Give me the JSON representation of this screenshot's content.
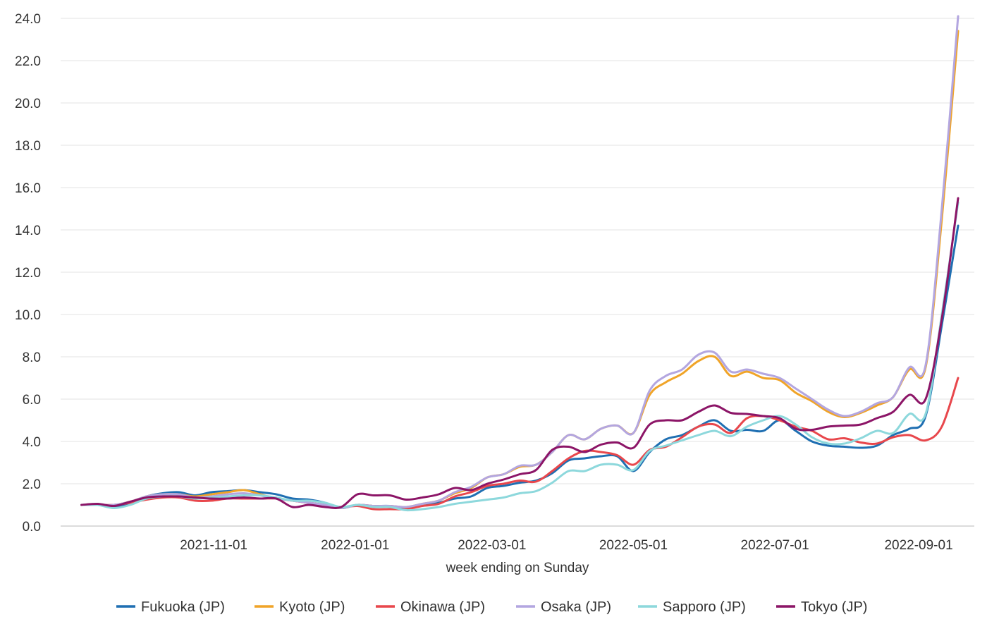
{
  "chart_data": {
    "type": "line",
    "title": "",
    "xlabel": "week ending on Sunday",
    "ylabel": "",
    "ylim": [
      0,
      24
    ],
    "yticks": [
      "0.0",
      "2.0",
      "4.0",
      "6.0",
      "8.0",
      "10.0",
      "12.0",
      "14.0",
      "16.0",
      "18.0",
      "20.0",
      "22.0",
      "24.0"
    ],
    "xticks": [
      "2021-11-01",
      "2022-01-01",
      "2022-03-01",
      "2022-05-01",
      "2022-07-01",
      "2022-09-01"
    ],
    "x": [
      "2021-09-05",
      "2021-09-12",
      "2021-09-19",
      "2021-09-26",
      "2021-10-03",
      "2021-10-10",
      "2021-10-17",
      "2021-10-24",
      "2021-10-31",
      "2021-11-07",
      "2021-11-14",
      "2021-11-21",
      "2021-11-28",
      "2021-12-05",
      "2021-12-12",
      "2021-12-19",
      "2021-12-26",
      "2022-01-02",
      "2022-01-09",
      "2022-01-16",
      "2022-01-23",
      "2022-01-30",
      "2022-02-06",
      "2022-02-13",
      "2022-02-20",
      "2022-02-27",
      "2022-03-06",
      "2022-03-13",
      "2022-03-20",
      "2022-03-27",
      "2022-04-03",
      "2022-04-10",
      "2022-04-17",
      "2022-04-24",
      "2022-05-01",
      "2022-05-08",
      "2022-05-15",
      "2022-05-22",
      "2022-05-29",
      "2022-06-05",
      "2022-06-12",
      "2022-06-19",
      "2022-06-26",
      "2022-07-03",
      "2022-07-10",
      "2022-07-17",
      "2022-07-24",
      "2022-07-31",
      "2022-08-07",
      "2022-08-14",
      "2022-08-21",
      "2022-08-28",
      "2022-09-04",
      "2022-09-11",
      "2022-09-18"
    ],
    "grid": true,
    "legend_position": "bottom",
    "series": [
      {
        "name": "Fukuoka (JP)",
        "color": "#1f6fb2",
        "values": [
          1.0,
          1.0,
          0.9,
          1.1,
          1.4,
          1.55,
          1.6,
          1.45,
          1.6,
          1.65,
          1.7,
          1.6,
          1.5,
          1.3,
          1.25,
          1.1,
          0.85,
          1.0,
          0.95,
          0.95,
          0.85,
          1.0,
          1.1,
          1.3,
          1.4,
          1.8,
          1.9,
          2.05,
          2.15,
          2.5,
          3.1,
          3.2,
          3.3,
          3.3,
          2.6,
          3.5,
          4.1,
          4.3,
          4.7,
          5.0,
          4.5,
          4.55,
          4.5,
          5.0,
          4.5,
          4.0,
          3.8,
          3.75,
          3.7,
          3.8,
          4.3,
          4.6,
          5.2,
          9.5,
          14.2
        ]
      },
      {
        "name": "Kyoto (JP)",
        "color": "#f0a428",
        "values": [
          1.0,
          1.0,
          1.0,
          1.15,
          1.4,
          1.5,
          1.5,
          1.4,
          1.5,
          1.6,
          1.7,
          1.5,
          1.3,
          1.2,
          1.1,
          1.0,
          0.85,
          1.0,
          0.95,
          0.95,
          0.9,
          1.05,
          1.2,
          1.55,
          1.8,
          2.3,
          2.45,
          2.8,
          2.9,
          3.5,
          4.3,
          4.1,
          4.6,
          4.75,
          4.4,
          6.2,
          6.8,
          7.2,
          7.8,
          8.0,
          7.1,
          7.3,
          7.0,
          6.9,
          6.3,
          5.9,
          5.4,
          5.15,
          5.35,
          5.7,
          6.1,
          7.4,
          7.5,
          14.5,
          23.4
        ]
      },
      {
        "name": "Okinawa (JP)",
        "color": "#e8474c",
        "values": [
          1.0,
          1.0,
          1.0,
          1.1,
          1.25,
          1.35,
          1.35,
          1.2,
          1.2,
          1.3,
          1.3,
          1.3,
          1.3,
          1.2,
          1.1,
          1.0,
          0.9,
          0.95,
          0.8,
          0.8,
          0.8,
          0.95,
          1.05,
          1.4,
          1.6,
          1.9,
          2.0,
          2.15,
          2.1,
          2.6,
          3.2,
          3.55,
          3.5,
          3.35,
          2.9,
          3.6,
          3.75,
          4.2,
          4.7,
          4.8,
          4.4,
          5.1,
          5.2,
          5.0,
          4.7,
          4.5,
          4.1,
          4.15,
          3.95,
          3.9,
          4.2,
          4.3,
          4.05,
          4.7,
          7.0
        ]
      },
      {
        "name": "Osaka (JP)",
        "color": "#b3a6e0",
        "values": [
          1.0,
          1.0,
          1.0,
          1.15,
          1.4,
          1.5,
          1.5,
          1.35,
          1.4,
          1.5,
          1.55,
          1.45,
          1.3,
          1.2,
          1.1,
          1.0,
          0.85,
          1.0,
          0.95,
          0.95,
          0.9,
          1.05,
          1.2,
          1.6,
          1.85,
          2.3,
          2.45,
          2.85,
          2.9,
          3.5,
          4.3,
          4.1,
          4.6,
          4.75,
          4.4,
          6.4,
          7.1,
          7.4,
          8.1,
          8.2,
          7.3,
          7.4,
          7.2,
          7.0,
          6.5,
          6.0,
          5.5,
          5.2,
          5.4,
          5.8,
          6.1,
          7.5,
          7.6,
          15.0,
          24.1
        ]
      },
      {
        "name": "Sapporo (JP)",
        "color": "#8dd8dc",
        "values": [
          1.0,
          1.0,
          0.85,
          1.0,
          1.3,
          1.4,
          1.4,
          1.3,
          1.35,
          1.4,
          1.45,
          1.45,
          1.35,
          1.2,
          1.2,
          1.1,
          0.9,
          1.0,
          0.9,
          0.9,
          0.75,
          0.8,
          0.9,
          1.05,
          1.15,
          1.25,
          1.35,
          1.55,
          1.65,
          2.05,
          2.6,
          2.6,
          2.9,
          2.9,
          2.65,
          3.55,
          3.8,
          4.05,
          4.3,
          4.5,
          4.25,
          4.7,
          5.0,
          5.2,
          4.8,
          4.2,
          3.9,
          3.9,
          4.15,
          4.5,
          4.4,
          5.3,
          5.3,
          10.0,
          15.3
        ]
      },
      {
        "name": "Tokyo (JP)",
        "color": "#8c1567",
        "values": [
          1.0,
          1.05,
          0.95,
          1.15,
          1.35,
          1.4,
          1.4,
          1.35,
          1.3,
          1.3,
          1.35,
          1.3,
          1.3,
          0.9,
          1.0,
          0.9,
          0.9,
          1.5,
          1.45,
          1.45,
          1.25,
          1.35,
          1.5,
          1.8,
          1.7,
          2.0,
          2.2,
          2.45,
          2.65,
          3.6,
          3.75,
          3.5,
          3.85,
          3.95,
          3.7,
          4.8,
          5.0,
          5.0,
          5.4,
          5.7,
          5.35,
          5.3,
          5.2,
          5.1,
          4.6,
          4.55,
          4.7,
          4.75,
          4.8,
          5.1,
          5.4,
          6.2,
          6.0,
          9.8,
          15.5
        ]
      }
    ]
  }
}
